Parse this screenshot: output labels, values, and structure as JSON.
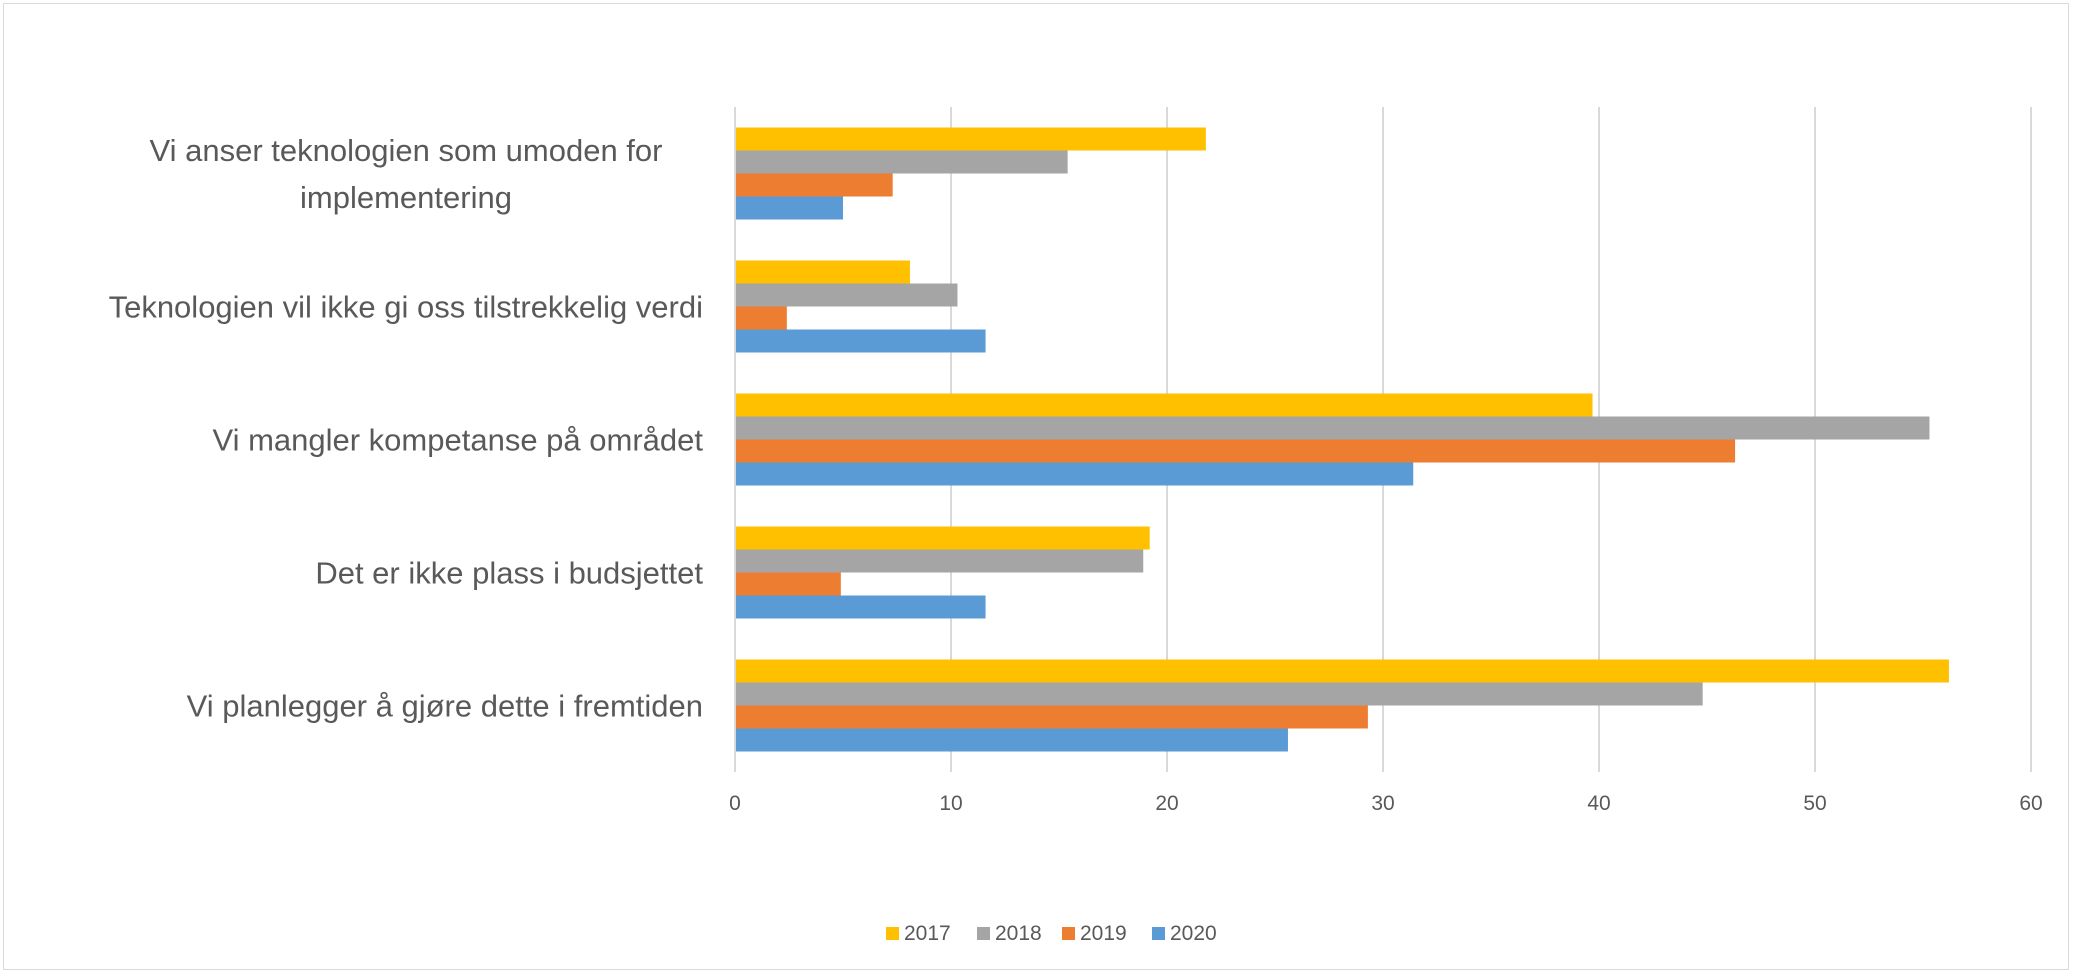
{
  "chart_data": {
    "type": "bar",
    "orientation": "horizontal",
    "categories": [
      [
        "Vi anser teknologien som umoden for",
        "implementering"
      ],
      [
        "Teknologien vil ikke gi oss tilstrekkelig verdi"
      ],
      [
        "Vi mangler kompetanse på området"
      ],
      [
        "Det er ikke plass i budsjettet"
      ],
      [
        "Vi planlegger å gjøre dette i fremtiden"
      ]
    ],
    "series": [
      {
        "name": "2017",
        "color": "#FFC000",
        "values": [
          21.8,
          8.1,
          39.7,
          19.2,
          56.2
        ]
      },
      {
        "name": "2018",
        "color": "#A5A5A5",
        "values": [
          15.4,
          10.3,
          55.3,
          18.9,
          44.8
        ]
      },
      {
        "name": "2019",
        "color": "#ED7D31",
        "values": [
          7.3,
          2.4,
          46.3,
          4.9,
          29.3
        ]
      },
      {
        "name": "2020",
        "color": "#5B9BD5",
        "values": [
          5.0,
          11.6,
          31.4,
          11.6,
          25.6
        ]
      }
    ],
    "xlim": [
      0,
      60
    ],
    "xticks": [
      "0",
      "10",
      "20",
      "30",
      "40",
      "50",
      "60"
    ],
    "grid": true,
    "legend_position": "bottom"
  }
}
